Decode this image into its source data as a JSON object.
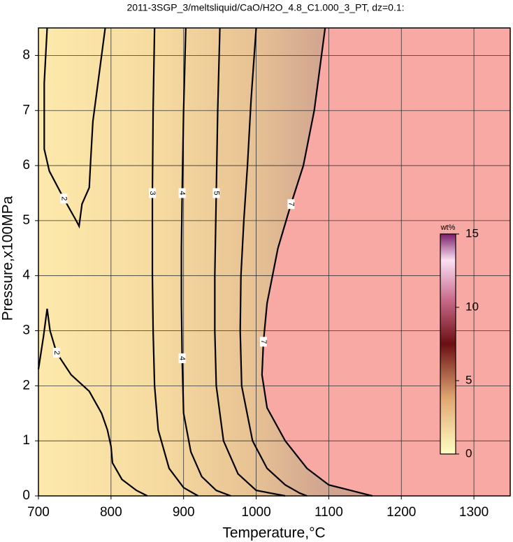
{
  "chart_data": {
    "type": "contour",
    "title": "2011-3SGP_3/meltsliquid/CaO/H2O_4.8_C1.000_3_PT, dz=0.1:",
    "x_label": "Temperature,°C",
    "y_label": "Pressure,x100MPa",
    "xlim": [
      700,
      1350
    ],
    "ylim": [
      0,
      8.5
    ],
    "xticks": [
      700,
      800,
      900,
      1000,
      1100,
      1200,
      1300
    ],
    "yticks": [
      0,
      1,
      2,
      3,
      4,
      5,
      6,
      7,
      8
    ],
    "grid": true,
    "colorbar": {
      "label": "wt%",
      "lim": [
        0,
        15
      ],
      "ticks": [
        0,
        5,
        10,
        15
      ]
    },
    "contours": [
      {
        "level": 2,
        "x": [
          712,
          708,
          708,
          715,
          735,
          752,
          756,
          760,
          770,
          772,
          775,
          783,
          792
        ],
        "y": [
          8.5,
          7.5,
          6.3,
          5.9,
          5.4,
          5.0,
          4.9,
          5.3,
          5.6,
          6.1,
          6.8,
          7.6,
          8.5
        ]
      },
      {
        "level": 2,
        "x": [
          700,
          707,
          712,
          716,
          725,
          745,
          770,
          787,
          795,
          800,
          802,
          815,
          835,
          850
        ],
        "y": [
          2.3,
          2.9,
          3.4,
          3.0,
          2.6,
          2.2,
          1.9,
          1.5,
          1.2,
          0.9,
          0.6,
          0.3,
          0.1,
          0
        ]
      },
      {
        "level": 3,
        "x": [
          860,
          858,
          857,
          857,
          858,
          860,
          865,
          880,
          900,
          920
        ],
        "y": [
          8.5,
          7,
          5.5,
          4,
          3,
          2,
          1.2,
          0.5,
          0.15,
          0
        ]
      },
      {
        "level": 4,
        "x": [
          903,
          900,
          898,
          897,
          897,
          898,
          900,
          910,
          925,
          945,
          965
        ],
        "y": [
          8.5,
          7,
          5.5,
          4.5,
          3.5,
          2.5,
          1.5,
          0.8,
          0.35,
          0.1,
          0
        ]
      },
      {
        "level": 5,
        "x": [
          950,
          947,
          945,
          943,
          943,
          945,
          955,
          975,
          1000,
          1040
        ],
        "y": [
          8.5,
          7,
          5.5,
          4,
          3,
          2,
          1,
          0.4,
          0.1,
          0
        ]
      },
      {
        "level": 6,
        "x": [
          1000,
          993,
          988,
          983,
          979,
          978,
          980,
          995,
          1015,
          1040,
          1060,
          1070
        ],
        "y": [
          8.5,
          7.2,
          6,
          5,
          4,
          3,
          2,
          1,
          0.5,
          0.2,
          0.05,
          0
        ]
      },
      {
        "level": 7,
        "x": [
          1095,
          1080,
          1065,
          1048,
          1030,
          1015,
          1010,
          1008,
          1015,
          1040,
          1070,
          1100,
          1130,
          1160
        ],
        "y": [
          8.5,
          7,
          6,
          5.3,
          4.5,
          3.5,
          2.8,
          2.2,
          1.6,
          1.0,
          0.5,
          0.2,
          0.1,
          0
        ]
      }
    ]
  }
}
